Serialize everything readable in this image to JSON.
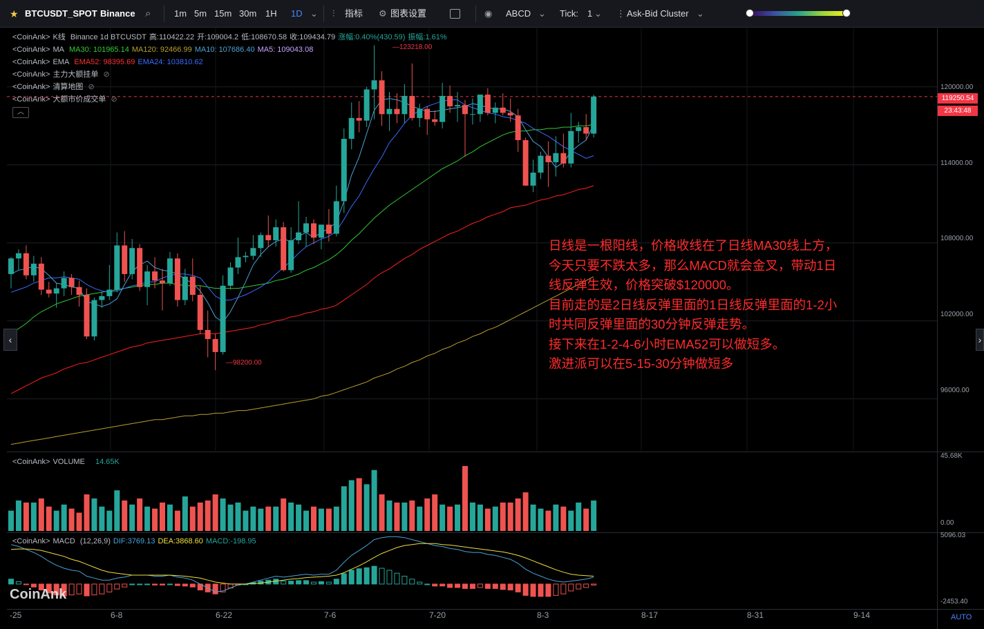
{
  "toolbar": {
    "symbol": "BTCUSDT_SPOT",
    "exchange": "Binance",
    "intervals": [
      "1m",
      "5m",
      "15m",
      "30m",
      "1H",
      "1D"
    ],
    "active_interval": "1D",
    "indicators_label": "指标",
    "chart_settings_label": "图表设置",
    "abcd_label": "ABCD",
    "tick_label": "Tick:",
    "tick_value": "1",
    "cluster_label": "Ask-Bid Cluster"
  },
  "legend": {
    "kline": {
      "prefix": "<CoinAnk>",
      "name": "K线",
      "info": "Binance 1d BTCUSDT",
      "high": "高:110422.22",
      "open": "开:109004.2",
      "low": "低:108670.58",
      "close": "收:109434.79",
      "change": "涨幅:0.40%(430.59)",
      "amplitude": "振幅:1.61%"
    },
    "ma": {
      "prefix": "<CoinAnk>",
      "name": "MA",
      "ma30": "MA30: 101965.14",
      "ma120": "MA120: 92466.99",
      "ma10": "MA10: 107686.40",
      "ma5": "MA5: 109043.08"
    },
    "ema": {
      "prefix": "<CoinAnk>",
      "name": "EMA",
      "ema52": "EMA52: 98395.69",
      "ema24": "EMA24: 103810.62"
    },
    "orders": {
      "prefix": "<CoinAnk>",
      "name": "主力大额挂单"
    },
    "liq": {
      "prefix": "<CoinAnk>",
      "name": "清算地图"
    },
    "big": {
      "prefix": "<CoinAnk>",
      "name": "大额市价成交单"
    },
    "volume": {
      "prefix": "<CoinAnk>",
      "name": "VOLUME",
      "value": "14.65K"
    },
    "macd": {
      "prefix": "<CoinAnk>",
      "name": "MACD",
      "params": "(12,26,9)",
      "dif": "DIF:3769.13",
      "dea": "DEA:3868.60",
      "macd": "MACD:-198.95"
    }
  },
  "price_axis": [
    "120000.00",
    "114000.00",
    "108000.00",
    "102000.00",
    "96000.00"
  ],
  "volume_axis": [
    "45.68K",
    "0.00"
  ],
  "macd_axis": [
    "5096.03",
    "-2453.40"
  ],
  "current_price": "119250.54",
  "countdown": "23:43:48",
  "high_marker": "123218.00",
  "low_marker": "98200.00",
  "x_axis": [
    "-25",
    "6-8",
    "6-22",
    "7-6",
    "7-20",
    "8-3",
    "8-17",
    "8-31",
    "9-14"
  ],
  "auto_label": "AUTO",
  "watermark": "CoinAnk",
  "annotation": [
    "日线是一根阳线，价格收线在了日线MA30线上方，",
    "今天只要不跌太多，那么MACD就会金叉，带动1日",
    "线反弹生效，价格突破$120000。",
    "目前走的是2日线反弹里面的1日线反弹里面的1-2小",
    "时共同反弹里面的30分钟反弹走势。",
    "接下来在1-2-4-6小时EMA52可以做短多。",
    "激进派可以在5-15-30分钟做短多"
  ],
  "colors": {
    "up": "#26a69a",
    "down": "#ef5350",
    "accent": "#4a86ff",
    "annotation": "#ff2b2b"
  },
  "chart_data": {
    "type": "candlestick",
    "x_ticks": [
      "-25",
      "6-8",
      "6-22",
      "7-6",
      "7-20",
      "8-3",
      "8-17",
      "8-31",
      "9-14"
    ],
    "ylim": [
      92000,
      124500
    ],
    "candles": [
      [
        105600,
        106900,
        104500,
        106800
      ],
      [
        106800,
        107500,
        105900,
        107200
      ],
      [
        107200,
        107800,
        105200,
        105500
      ],
      [
        105500,
        107000,
        105000,
        106400
      ],
      [
        106400,
        106900,
        104000,
        104400
      ],
      [
        104400,
        105000,
        103800,
        104100
      ],
      [
        104100,
        104900,
        103000,
        104500
      ],
      [
        104500,
        105800,
        103900,
        105300
      ],
      [
        105300,
        105600,
        104000,
        104600
      ],
      [
        104600,
        105100,
        103100,
        104000
      ],
      [
        104000,
        104500,
        100600,
        100800
      ],
      [
        100800,
        103800,
        100500,
        103600
      ],
      [
        103600,
        104200,
        103000,
        103900
      ],
      [
        103900,
        106300,
        103600,
        104400
      ],
      [
        104400,
        108800,
        104200,
        107800
      ],
      [
        107800,
        108900,
        105000,
        105600
      ],
      [
        105600,
        108300,
        105200,
        107600
      ],
      [
        107600,
        107900,
        104300,
        104600
      ],
      [
        104600,
        106300,
        103200,
        105800
      ],
      [
        105800,
        106900,
        104500,
        105100
      ],
      [
        105100,
        106000,
        102800,
        104900
      ],
      [
        104900,
        107300,
        104700,
        106800
      ],
      [
        106800,
        107200,
        103100,
        103600
      ],
      [
        103600,
        106000,
        103200,
        105400
      ],
      [
        105400,
        106800,
        103500,
        104000
      ],
      [
        104000,
        104700,
        101000,
        101300
      ],
      [
        101300,
        102800,
        99200,
        100600
      ],
      [
        100600,
        101000,
        98200,
        99600
      ],
      [
        99600,
        105500,
        99400,
        104700
      ],
      [
        104700,
        106500,
        104400,
        106100
      ],
      [
        106100,
        108400,
        105600,
        106900
      ],
      [
        106900,
        107300,
        106500,
        107000
      ],
      [
        107000,
        108600,
        106700,
        107600
      ],
      [
        107600,
        108800,
        106900,
        108600
      ],
      [
        108600,
        110100,
        107700,
        108200
      ],
      [
        108200,
        109800,
        107700,
        109200
      ],
      [
        109200,
        109600,
        105800,
        105900
      ],
      [
        105900,
        109200,
        105700,
        108200
      ],
      [
        108200,
        111200,
        107900,
        108800
      ],
      [
        108800,
        110000,
        107700,
        109500
      ],
      [
        109500,
        109800,
        107900,
        108400
      ],
      [
        108400,
        109400,
        107500,
        109400
      ],
      [
        109400,
        110600,
        108100,
        108700
      ],
      [
        108700,
        112400,
        108500,
        111200
      ],
      [
        111200,
        116800,
        110300,
        116000
      ],
      [
        116000,
        118800,
        115200,
        117600
      ],
      [
        117600,
        118900,
        116500,
        117400
      ],
      [
        117400,
        120000,
        116900,
        119800
      ],
      [
        119800,
        123200,
        117500,
        120500
      ],
      [
        120500,
        121200,
        117000,
        117900
      ],
      [
        117900,
        119600,
        116600,
        118300
      ],
      [
        118300,
        119500,
        117200,
        117900
      ],
      [
        117900,
        120200,
        117200,
        119300
      ],
      [
        119300,
        121800,
        117400,
        117600
      ],
      [
        117600,
        118700,
        116900,
        118300
      ],
      [
        118300,
        118500,
        116300,
        117500
      ],
      [
        117500,
        118200,
        117000,
        117300
      ],
      [
        117300,
        120300,
        116800,
        119300
      ],
      [
        119300,
        120100,
        118000,
        118500
      ],
      [
        118500,
        119600,
        117300,
        118600
      ],
      [
        118600,
        119000,
        114600,
        117900
      ],
      [
        117900,
        119100,
        117100,
        117900
      ],
      [
        117900,
        119200,
        117300,
        119400
      ],
      [
        119400,
        119900,
        117800,
        118000
      ],
      [
        118000,
        118800,
        117200,
        118400
      ],
      [
        118400,
        119500,
        117800,
        118000
      ],
      [
        118000,
        119100,
        117300,
        117800
      ],
      [
        117800,
        118300,
        115000,
        115900
      ],
      [
        115900,
        116100,
        112400,
        112400
      ],
      [
        112400,
        114400,
        111900,
        113400
      ],
      [
        113400,
        115000,
        112900,
        114700
      ],
      [
        114700,
        115800,
        112300,
        114200
      ],
      [
        114200,
        116200,
        113100,
        114900
      ],
      [
        114900,
        116400,
        113800,
        114100
      ],
      [
        114100,
        118000,
        113800,
        116600
      ],
      [
        116600,
        117300,
        115700,
        116900
      ],
      [
        116900,
        117900,
        115900,
        116400
      ],
      [
        116400,
        119400,
        116100,
        119250
      ]
    ],
    "volumes": [
      10,
      15,
      14,
      14,
      16,
      12,
      10,
      13,
      11,
      9,
      18,
      16,
      12,
      10,
      20,
      15,
      13,
      16,
      12,
      11,
      14,
      13,
      10,
      17,
      12,
      14,
      15,
      18,
      16,
      13,
      14,
      10,
      12,
      11,
      12,
      12,
      16,
      14,
      13,
      10,
      12,
      11,
      11,
      12,
      22,
      25,
      26,
      23,
      30,
      18,
      15,
      14,
      14,
      15,
      12,
      16,
      18,
      13,
      12,
      13,
      32,
      14,
      13,
      11,
      12,
      14,
      14,
      16,
      19,
      13,
      11,
      10,
      13,
      12,
      10,
      14,
      11,
      15
    ],
    "ma5": [
      105600,
      105900,
      106000,
      106200,
      106000,
      105500,
      104900,
      104800,
      104600,
      104500,
      103500,
      103300,
      103100,
      103300,
      103700,
      104800,
      105800,
      106300,
      106600,
      106100,
      105900,
      105800,
      105600,
      105200,
      104900,
      104300,
      103400,
      102300,
      101900,
      102700,
      103800,
      105000,
      106300,
      107100,
      107700,
      108100,
      108300,
      108100,
      108500,
      108800,
      108400,
      108800,
      109100,
      109600,
      111200,
      113200,
      114600,
      116400,
      118200,
      119000,
      119100,
      119000,
      118800,
      118500,
      118300,
      118100,
      118100,
      118200,
      118300,
      118400,
      118500,
      118700,
      118600,
      118400,
      118300,
      118300,
      118100,
      117700,
      116700,
      115800,
      115400,
      114600,
      113800,
      114200,
      115000,
      115500,
      115900,
      117100
    ],
    "ma10": [
      104200,
      104400,
      104600,
      104900,
      105100,
      105300,
      105300,
      105400,
      105300,
      105200,
      104800,
      104500,
      104300,
      104200,
      104300,
      104500,
      104700,
      104800,
      105000,
      105000,
      105300,
      105500,
      105600,
      105600,
      105500,
      105300,
      104600,
      103900,
      103600,
      103600,
      103800,
      104000,
      104300,
      104600,
      105000,
      105600,
      106100,
      106600,
      107200,
      107700,
      108000,
      108300,
      108500,
      108900,
      109800,
      110800,
      111600,
      112700,
      113700,
      114600,
      115700,
      116400,
      117200,
      117800,
      118200,
      118500,
      118700,
      118900,
      119000,
      119000,
      118600,
      118400,
      118200,
      118000,
      117900,
      117700,
      117600,
      117400,
      117200,
      116800,
      116500,
      116200,
      115800,
      115400,
      115100,
      114800,
      114500,
      114700
    ],
    "ma30": [
      101000,
      101400,
      101800,
      102300,
      102700,
      103000,
      103300,
      103500,
      103700,
      103900,
      104000,
      104100,
      104200,
      104300,
      104400,
      104500,
      104600,
      104700,
      104800,
      104800,
      104900,
      104900,
      104800,
      104700,
      104700,
      104700,
      104600,
      104500,
      104500,
      104500,
      104500,
      104600,
      104700,
      104800,
      104900,
      105100,
      105200,
      105400,
      105600,
      105900,
      106100,
      106400,
      106700,
      107100,
      107600,
      108200,
      108700,
      109300,
      109900,
      110400,
      110900,
      111300,
      111700,
      112100,
      112500,
      112900,
      113300,
      113700,
      114000,
      114300,
      114700,
      115000,
      115400,
      115700,
      116000,
      116300,
      116500,
      116600,
      116600,
      116700,
      116700,
      116800,
      116800,
      116900,
      116900,
      117000,
      117000,
      117100
    ],
    "ema52": [
      96400,
      96700,
      97000,
      97300,
      97600,
      97800,
      98000,
      98300,
      98500,
      98700,
      98800,
      99000,
      99200,
      99400,
      99600,
      99800,
      100000,
      100100,
      100300,
      100400,
      100500,
      100600,
      100700,
      100800,
      100900,
      101000,
      101000,
      101000,
      101100,
      101200,
      101300,
      101400,
      101500,
      101700,
      101800,
      102000,
      102100,
      102300,
      102400,
      102600,
      102700,
      102900,
      103000,
      103200,
      103600,
      104000,
      104400,
      104800,
      105300,
      105700,
      106000,
      106400,
      106800,
      107100,
      107500,
      107800,
      108100,
      108400,
      108700,
      108900,
      109200,
      109500,
      109700,
      110000,
      110200,
      110400,
      110700,
      110800,
      110900,
      111100,
      111300,
      111400,
      111600,
      111700,
      111900,
      112100,
      112200,
      112400
    ],
    "ma120": [
      92500,
      92600,
      92700,
      92800,
      92900,
      93000,
      93100,
      93200,
      93300,
      93400,
      93500,
      93600,
      93700,
      93800,
      93900,
      94000,
      94100,
      94200,
      94300,
      94400,
      94400,
      94500,
      94600,
      94700,
      94700,
      94800,
      94800,
      94900,
      94900,
      95000,
      95100,
      95100,
      95200,
      95300,
      95400,
      95500,
      95600,
      95700,
      95800,
      95900,
      96000,
      96200,
      96300,
      96500,
      96700,
      96900,
      97100,
      97300,
      97600,
      97800,
      98000,
      98300,
      98500,
      98800,
      99000,
      99300,
      99500,
      99800,
      100000,
      100300,
      100500,
      100800,
      101000,
      101300,
      101500,
      101800,
      102100,
      102400,
      102700,
      103000,
      103300,
      103600,
      103900,
      104200,
      104500,
      104800,
      105100,
      105400
    ],
    "macd_dif": [
      4000,
      3800,
      3500,
      3200,
      2800,
      2300,
      1900,
      1600,
      1400,
      1300,
      800,
      600,
      400,
      400,
      600,
      700,
      900,
      900,
      900,
      800,
      800,
      900,
      700,
      600,
      400,
      0,
      -400,
      -800,
      -700,
      -400,
      -100,
      0,
      200,
      400,
      600,
      800,
      700,
      800,
      900,
      1000,
      900,
      1000,
      1000,
      1400,
      2200,
      2900,
      3400,
      3900,
      4500,
      4700,
      4800,
      4800,
      4700,
      4500,
      4300,
      4100,
      3900,
      3800,
      3600,
      3500,
      3300,
      3200,
      3200,
      3000,
      2900,
      2700,
      2500,
      2100,
      1500,
      1100,
      800,
      500,
      300,
      200,
      300,
      400,
      500,
      700
    ],
    "macd_dea": [
      3500,
      3550,
      3550,
      3500,
      3400,
      3200,
      3000,
      2800,
      2500,
      2300,
      2000,
      1700,
      1400,
      1200,
      1100,
      1000,
      900,
      900,
      900,
      900,
      900,
      900,
      850,
      800,
      700,
      600,
      400,
      200,
      100,
      0,
      0,
      0,
      50,
      100,
      200,
      300,
      400,
      500,
      550,
      650,
      700,
      750,
      800,
      900,
      1150,
      1500,
      1850,
      2250,
      2700,
      3100,
      3400,
      3700,
      3900,
      4000,
      4100,
      4100,
      4100,
      4000,
      3950,
      3850,
      3750,
      3650,
      3550,
      3450,
      3350,
      3250,
      3100,
      2900,
      2650,
      2350,
      2050,
      1750,
      1450,
      1200,
      1000,
      900,
      850,
      800
    ],
    "macd_hist": [
      500,
      250,
      -50,
      -300,
      -600,
      -900,
      -1100,
      -1200,
      -1100,
      -1000,
      -1200,
      -1100,
      -1000,
      -800,
      -500,
      -300,
      0,
      0,
      0,
      -100,
      -100,
      0,
      -150,
      -200,
      -300,
      -600,
      -800,
      -1000,
      -800,
      -400,
      -100,
      0,
      150,
      300,
      400,
      500,
      300,
      300,
      350,
      350,
      200,
      250,
      200,
      500,
      1050,
      1400,
      1550,
      1650,
      1800,
      1600,
      1400,
      1100,
      800,
      500,
      200,
      0,
      -200,
      -200,
      -350,
      -350,
      -450,
      -450,
      -350,
      -450,
      -450,
      -550,
      -600,
      -800,
      -1150,
      -1250,
      -1250,
      -1250,
      -1150,
      -1000,
      -700,
      -500,
      -350,
      -100
    ],
    "macd_ylim": [
      -2453.4,
      5096.03
    ]
  }
}
